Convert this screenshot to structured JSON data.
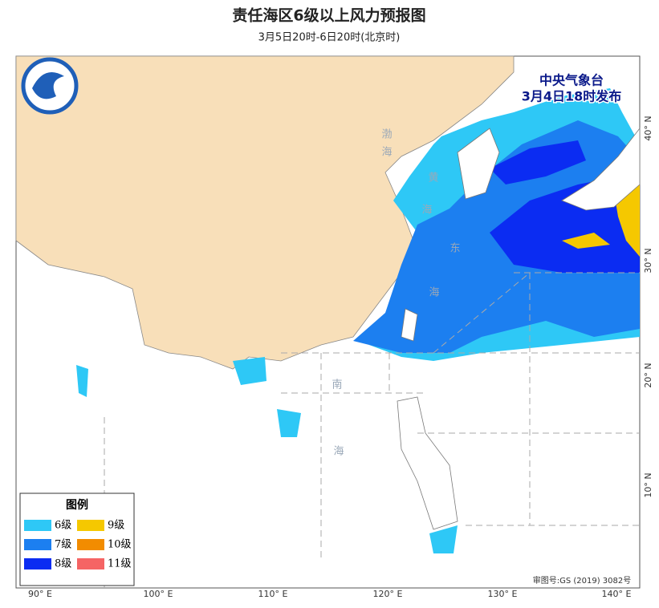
{
  "header": {
    "title": "责任海区6级以上风力预报图",
    "subtitle": "3月5日20时-6日20时(北京时)"
  },
  "issuer": {
    "name": "中央气象台",
    "time": "3月4日18时发布"
  },
  "legend": {
    "title": "图例",
    "items": [
      {
        "label": "6级",
        "color": "#2ec8f6"
      },
      {
        "label": "7级",
        "color": "#1c7ff0"
      },
      {
        "label": "8级",
        "color": "#0b2cf2"
      },
      {
        "label": "9级",
        "color": "#f5c800"
      },
      {
        "label": "10级",
        "color": "#f28c00"
      },
      {
        "label": "11级",
        "color": "#f56464"
      }
    ]
  },
  "axes": {
    "longitude": [
      "90° E",
      "100° E",
      "110° E",
      "120° E",
      "130° E",
      "140° E"
    ],
    "latitude": [
      "40° N",
      "30° N",
      "20° N",
      "10° N"
    ]
  },
  "sea_labels": [
    "渤",
    "海",
    "黄",
    "海",
    "东",
    "海",
    "南",
    "海"
  ],
  "map_approval": "审图号:GS (2019) 3082号"
}
